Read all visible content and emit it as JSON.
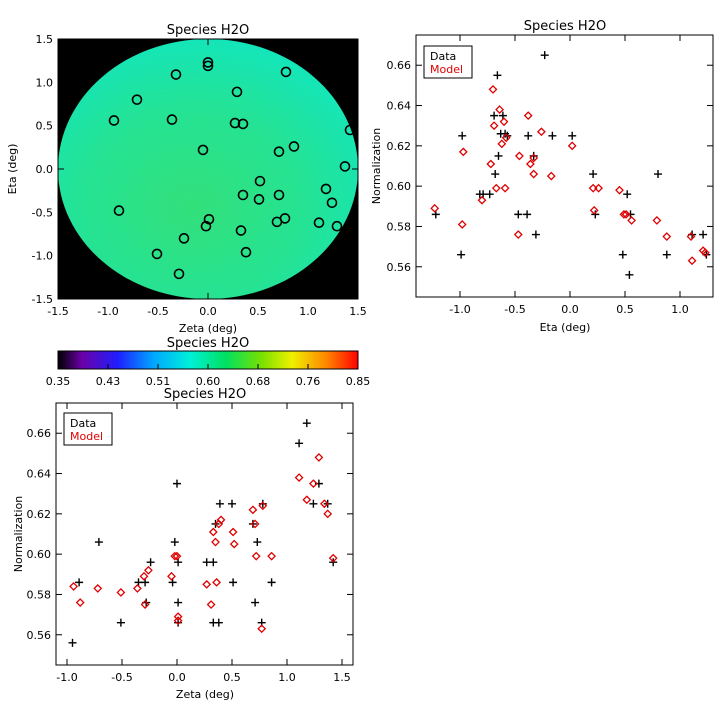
{
  "chart_data": [
    {
      "type": "map",
      "title": "Species H2O",
      "xlabel": "Zeta (deg)",
      "ylabel": "Eta (deg)",
      "xlim": [
        -1.5,
        1.5
      ],
      "ylim": [
        -1.5,
        1.5
      ],
      "xticks": [
        -1.5,
        -1.0,
        -0.5,
        0.0,
        0.5,
        1.0,
        1.5
      ],
      "yticks": [
        -1.5,
        -1.0,
        -0.5,
        0.0,
        0.5,
        1.0,
        1.5
      ],
      "field_radius": 1.5,
      "points": [
        {
          "x": -0.32,
          "y": 1.09
        },
        {
          "x": 0.0,
          "y": 1.23
        },
        {
          "x": 0.0,
          "y": 1.19
        },
        {
          "x": 0.78,
          "y": 1.12
        },
        {
          "x": -0.71,
          "y": 0.8
        },
        {
          "x": 0.29,
          "y": 0.89
        },
        {
          "x": -0.94,
          "y": 0.56
        },
        {
          "x": -0.36,
          "y": 0.57
        },
        {
          "x": 0.27,
          "y": 0.53
        },
        {
          "x": 0.35,
          "y": 0.52
        },
        {
          "x": 1.42,
          "y": 0.45
        },
        {
          "x": -0.05,
          "y": 0.22
        },
        {
          "x": 0.71,
          "y": 0.2
        },
        {
          "x": 0.86,
          "y": 0.26
        },
        {
          "x": 1.37,
          "y": 0.03
        },
        {
          "x": 0.52,
          "y": -0.14
        },
        {
          "x": 1.18,
          "y": -0.23
        },
        {
          "x": 0.35,
          "y": -0.3
        },
        {
          "x": 0.51,
          "y": -0.35
        },
        {
          "x": 0.71,
          "y": -0.3
        },
        {
          "x": 1.24,
          "y": -0.39
        },
        {
          "x": -0.89,
          "y": -0.48
        },
        {
          "x": 0.77,
          "y": -0.57
        },
        {
          "x": 0.01,
          "y": -0.58
        },
        {
          "x": -0.02,
          "y": -0.66
        },
        {
          "x": 0.69,
          "y": -0.61
        },
        {
          "x": 1.11,
          "y": -0.62
        },
        {
          "x": 1.29,
          "y": -0.66
        },
        {
          "x": 0.33,
          "y": -0.71
        },
        {
          "x": -0.24,
          "y": -0.8
        },
        {
          "x": 0.38,
          "y": -0.96
        },
        {
          "x": -0.51,
          "y": -0.98
        },
        {
          "x": -0.29,
          "y": -1.21
        }
      ]
    },
    {
      "type": "colorbar",
      "title": "Species H2O",
      "range": [
        0.35,
        0.85
      ],
      "tick_labels": [
        "0.35",
        "0.43",
        "0.51",
        "0.60",
        "0.68",
        "0.76",
        "0.85"
      ]
    },
    {
      "type": "scatter",
      "title": "Species H2O",
      "xlabel": "Eta (deg)",
      "ylabel": "Normalization",
      "xlim": [
        -1.4,
        1.3
      ],
      "ylim": [
        0.545,
        0.675
      ],
      "xticks": [
        -1.0,
        -0.5,
        0.0,
        0.5,
        1.0
      ],
      "yticks": [
        0.56,
        0.58,
        0.6,
        0.62,
        0.64,
        0.66
      ],
      "legend": [
        "Data",
        "Model"
      ],
      "series": [
        {
          "name": "Data",
          "marker": "plus",
          "points": [
            [
              -1.22,
              0.586
            ],
            [
              -0.98,
              0.625
            ],
            [
              -0.99,
              0.566
            ],
            [
              -0.82,
              0.596
            ],
            [
              -0.79,
              0.596
            ],
            [
              -0.73,
              0.596
            ],
            [
              -0.69,
              0.635
            ],
            [
              -0.66,
              0.655
            ],
            [
              -0.65,
              0.615
            ],
            [
              -0.63,
              0.626
            ],
            [
              -0.61,
              0.635
            ],
            [
              -0.59,
              0.626
            ],
            [
              -0.57,
              0.625
            ],
            [
              -0.68,
              0.606
            ],
            [
              -0.47,
              0.586
            ],
            [
              -0.39,
              0.586
            ],
            [
              -0.38,
              0.625
            ],
            [
              -0.33,
              0.615
            ],
            [
              -0.31,
              0.576
            ],
            [
              -0.23,
              0.665
            ],
            [
              -0.16,
              0.625
            ],
            [
              0.02,
              0.625
            ],
            [
              0.21,
              0.606
            ],
            [
              0.23,
              0.586
            ],
            [
              0.48,
              0.566
            ],
            [
              0.52,
              0.596
            ],
            [
              0.55,
              0.586
            ],
            [
              0.54,
              0.556
            ],
            [
              0.8,
              0.606
            ],
            [
              0.88,
              0.566
            ],
            [
              1.11,
              0.576
            ],
            [
              1.21,
              0.576
            ],
            [
              1.24,
              0.566
            ]
          ]
        },
        {
          "name": "Model",
          "marker": "diamond",
          "points": [
            [
              -1.23,
              0.589
            ],
            [
              -0.98,
              0.581
            ],
            [
              -0.97,
              0.617
            ],
            [
              -0.8,
              0.593
            ],
            [
              -0.72,
              0.611
            ],
            [
              -0.7,
              0.648
            ],
            [
              -0.69,
              0.63
            ],
            [
              -0.67,
              0.599
            ],
            [
              -0.64,
              0.638
            ],
            [
              -0.62,
              0.621
            ],
            [
              -0.6,
              0.632
            ],
            [
              -0.58,
              0.624
            ],
            [
              -0.59,
              0.599
            ],
            [
              -0.47,
              0.576
            ],
            [
              -0.46,
              0.615
            ],
            [
              -0.38,
              0.635
            ],
            [
              -0.36,
              0.611
            ],
            [
              -0.33,
              0.614
            ],
            [
              -0.26,
              0.627
            ],
            [
              -0.17,
              0.605
            ],
            [
              -0.33,
              0.606
            ],
            [
              0.02,
              0.62
            ],
            [
              0.21,
              0.599
            ],
            [
              0.26,
              0.599
            ],
            [
              0.22,
              0.588
            ],
            [
              0.45,
              0.598
            ],
            [
              0.49,
              0.586
            ],
            [
              0.51,
              0.586
            ],
            [
              0.56,
              0.583
            ],
            [
              0.79,
              0.583
            ],
            [
              0.88,
              0.575
            ],
            [
              1.1,
              0.575
            ],
            [
              1.11,
              0.563
            ],
            [
              1.21,
              0.568
            ],
            [
              1.23,
              0.567
            ]
          ]
        }
      ]
    },
    {
      "type": "scatter",
      "title": "Species H2O",
      "xlabel": "Zeta (deg)",
      "ylabel": "Normalization",
      "xlim": [
        -1.1,
        1.6
      ],
      "ylim": [
        0.545,
        0.675
      ],
      "xticks": [
        -1.0,
        -0.5,
        0.0,
        0.5,
        1.0,
        1.5
      ],
      "yticks": [
        0.56,
        0.58,
        0.6,
        0.62,
        0.64,
        0.66
      ],
      "legend": [
        "Data",
        "Model"
      ],
      "series": [
        {
          "name": "Data",
          "marker": "plus",
          "points": [
            [
              -0.95,
              0.556
            ],
            [
              -0.89,
              0.586
            ],
            [
              -0.71,
              0.606
            ],
            [
              -0.51,
              0.566
            ],
            [
              -0.35,
              0.586
            ],
            [
              -0.28,
              0.576
            ],
            [
              -0.24,
              0.596
            ],
            [
              -0.29,
              0.586
            ],
            [
              -0.04,
              0.586
            ],
            [
              -0.02,
              0.606
            ],
            [
              0.0,
              0.635
            ],
            [
              0.01,
              0.596
            ],
            [
              0.01,
              0.576
            ],
            [
              0.01,
              0.566
            ],
            [
              0.27,
              0.596
            ],
            [
              0.33,
              0.596
            ],
            [
              0.33,
              0.566
            ],
            [
              0.35,
              0.615
            ],
            [
              0.38,
              0.566
            ],
            [
              0.39,
              0.625
            ],
            [
              0.5,
              0.625
            ],
            [
              0.51,
              0.586
            ],
            [
              0.69,
              0.615
            ],
            [
              0.71,
              0.576
            ],
            [
              0.73,
              0.606
            ],
            [
              0.77,
              0.566
            ],
            [
              0.78,
              0.625
            ],
            [
              0.86,
              0.586
            ],
            [
              1.11,
              0.655
            ],
            [
              1.18,
              0.665
            ],
            [
              1.24,
              0.625
            ],
            [
              1.29,
              0.635
            ],
            [
              1.37,
              0.625
            ],
            [
              1.42,
              0.596
            ]
          ]
        },
        {
          "name": "Model",
          "marker": "diamond",
          "points": [
            [
              -0.94,
              0.584
            ],
            [
              -0.88,
              0.576
            ],
            [
              -0.72,
              0.583
            ],
            [
              -0.51,
              0.581
            ],
            [
              -0.36,
              0.583
            ],
            [
              -0.3,
              0.589
            ],
            [
              -0.29,
              0.575
            ],
            [
              -0.26,
              0.592
            ],
            [
              -0.05,
              0.589
            ],
            [
              -0.02,
              0.599
            ],
            [
              0.0,
              0.599
            ],
            [
              0.01,
              0.569
            ],
            [
              0.01,
              0.567
            ],
            [
              0.27,
              0.585
            ],
            [
              0.31,
              0.575
            ],
            [
              0.33,
              0.611
            ],
            [
              0.35,
              0.606
            ],
            [
              0.36,
              0.586
            ],
            [
              0.38,
              0.615
            ],
            [
              0.4,
              0.617
            ],
            [
              0.51,
              0.611
            ],
            [
              0.52,
              0.605
            ],
            [
              0.69,
              0.622
            ],
            [
              0.71,
              0.615
            ],
            [
              0.72,
              0.599
            ],
            [
              0.77,
              0.563
            ],
            [
              0.78,
              0.624
            ],
            [
              0.86,
              0.599
            ],
            [
              1.11,
              0.638
            ],
            [
              1.18,
              0.627
            ],
            [
              1.24,
              0.635
            ],
            [
              1.29,
              0.648
            ],
            [
              1.37,
              0.62
            ],
            [
              1.42,
              0.598
            ],
            [
              1.34,
              0.625
            ]
          ]
        }
      ]
    }
  ]
}
